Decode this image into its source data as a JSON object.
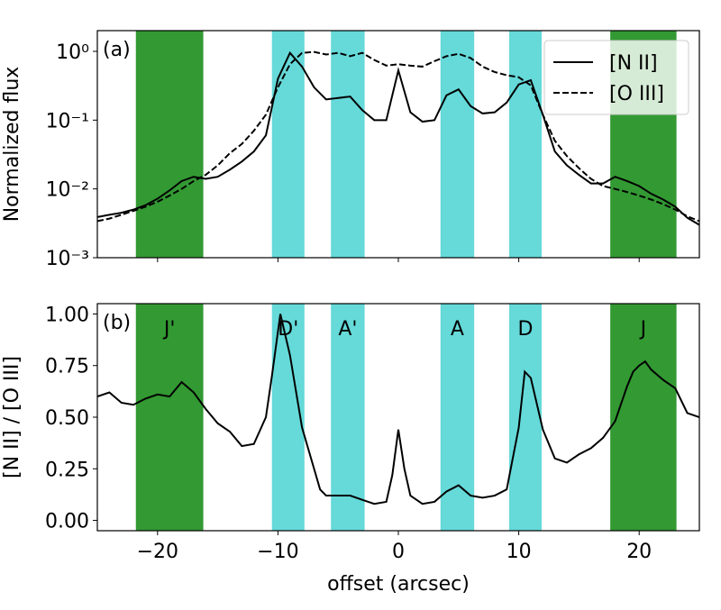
{
  "chart_data": [
    {
      "type": "line",
      "annotation": "(a)",
      "ylabel": "Normalized flux",
      "log_y": true,
      "legend": "upper right",
      "xlim": [
        -25,
        25
      ],
      "xticks": [
        {
          "value": -20,
          "label": "−20"
        },
        {
          "value": -10,
          "label": "−10"
        },
        0,
        10,
        20
      ],
      "xtick_labels": false,
      "ylim": [
        0.001,
        2
      ],
      "yticks": [
        {
          "value": 0.001,
          "label": "10⁻³"
        },
        {
          "value": 0.01,
          "label": "10⁻²"
        },
        {
          "value": 0.1,
          "label": "10⁻¹"
        },
        {
          "value": 1,
          "label": "10⁰"
        }
      ],
      "bands": [
        {
          "range": [
            -21.8,
            -16.2
          ],
          "color": "#339933"
        },
        {
          "range": [
            -10.5,
            -7.8
          ],
          "color": "#66d9d9"
        },
        {
          "range": [
            -5.6,
            -2.8
          ],
          "color": "#66d9d9"
        },
        {
          "range": [
            3.5,
            6.3
          ],
          "color": "#66d9d9"
        },
        {
          "range": [
            9.2,
            11.9
          ],
          "color": "#66d9d9"
        },
        {
          "range": [
            17.6,
            23.1
          ],
          "color": "#339933"
        }
      ],
      "x": [
        -25,
        -24,
        -23,
        -22,
        -21,
        -20,
        -19,
        -18,
        -17,
        -16,
        -15,
        -14,
        -13,
        -12,
        -11,
        -10,
        -9,
        -8,
        -7,
        -6,
        -5,
        -4,
        -3,
        -2,
        -1,
        0,
        1,
        2,
        3,
        4,
        5,
        6,
        7,
        8,
        9,
        10,
        11,
        12,
        13,
        14,
        15,
        16,
        17,
        18,
        19,
        20,
        21,
        22,
        23,
        24,
        25
      ],
      "series": [
        {
          "name": "[N II]",
          "color": "#000000",
          "dashed": false,
          "values": [
            0.0039,
            0.0042,
            0.0045,
            0.005,
            0.0058,
            0.0072,
            0.0095,
            0.013,
            0.015,
            0.014,
            0.015,
            0.019,
            0.025,
            0.035,
            0.06,
            0.4,
            0.95,
            0.6,
            0.3,
            0.2,
            0.21,
            0.22,
            0.14,
            0.1,
            0.1,
            0.53,
            0.13,
            0.095,
            0.1,
            0.23,
            0.28,
            0.16,
            0.125,
            0.13,
            0.18,
            0.33,
            0.38,
            0.12,
            0.035,
            0.022,
            0.016,
            0.012,
            0.012,
            0.015,
            0.013,
            0.011,
            0.0085,
            0.007,
            0.0055,
            0.0038,
            0.003
          ]
        },
        {
          "name": "[O III]",
          "color": "#000000",
          "dashed": true,
          "values": [
            0.0034,
            0.0037,
            0.0042,
            0.0048,
            0.0055,
            0.0065,
            0.008,
            0.01,
            0.013,
            0.016,
            0.022,
            0.033,
            0.045,
            0.07,
            0.12,
            0.3,
            0.65,
            0.95,
            0.98,
            0.9,
            0.95,
            0.85,
            0.95,
            0.75,
            0.62,
            0.65,
            0.62,
            0.6,
            0.72,
            0.85,
            0.92,
            0.8,
            0.6,
            0.5,
            0.45,
            0.42,
            0.32,
            0.12,
            0.05,
            0.03,
            0.02,
            0.014,
            0.011,
            0.01,
            0.009,
            0.008,
            0.007,
            0.006,
            0.005,
            0.004,
            0.0034
          ]
        }
      ]
    },
    {
      "type": "line",
      "annotation": "(b)",
      "ylabel": "[N II] / [O III]",
      "xlabel": "offset (arcsec)",
      "xlim": [
        -25,
        25
      ],
      "xticks": [
        {
          "value": -20,
          "label": "−20"
        },
        {
          "value": -10,
          "label": "−10"
        },
        0,
        10,
        20
      ],
      "ylim": [
        -0.05,
        1.05
      ],
      "yticks": [
        {
          "value": 0,
          "label": "0.00"
        },
        0.25,
        {
          "value": 0.5,
          "label": "0.50"
        },
        0.75,
        {
          "value": 1,
          "label": "1.00"
        }
      ],
      "bands": [
        {
          "label": "J'",
          "range": [
            -21.8,
            -16.2
          ],
          "color": "#339933"
        },
        {
          "label": "D'",
          "range": [
            -10.5,
            -7.8
          ],
          "color": "#66d9d9"
        },
        {
          "label": "A'",
          "range": [
            -5.6,
            -2.8
          ],
          "color": "#66d9d9"
        },
        {
          "label": "A",
          "range": [
            3.5,
            6.3
          ],
          "color": "#66d9d9"
        },
        {
          "label": "D",
          "range": [
            9.2,
            11.9
          ],
          "color": "#66d9d9"
        },
        {
          "label": "J",
          "range": [
            17.6,
            23.1
          ],
          "color": "#339933"
        }
      ],
      "x": [
        -25,
        -24,
        -23,
        -22,
        -21,
        -20,
        -19,
        -18,
        -17,
        -16,
        -15,
        -14,
        -13,
        -12,
        -11,
        -10.5,
        -9.8,
        -9,
        -8,
        -7,
        -6.5,
        -6,
        -5,
        -4,
        -3,
        -2,
        -1,
        -0.5,
        0,
        0.5,
        1,
        2,
        3,
        4,
        5,
        6,
        7,
        8,
        9,
        10,
        10.5,
        11,
        12,
        13,
        14,
        15,
        16,
        17,
        18,
        19,
        19.5,
        20,
        20.5,
        21,
        22,
        23,
        24,
        25
      ],
      "series": [
        {
          "color": "#000000",
          "values": [
            0.6,
            0.62,
            0.57,
            0.56,
            0.59,
            0.61,
            0.6,
            0.67,
            0.62,
            0.54,
            0.47,
            0.43,
            0.36,
            0.37,
            0.5,
            0.7,
            1.0,
            0.8,
            0.45,
            0.25,
            0.15,
            0.12,
            0.12,
            0.12,
            0.1,
            0.08,
            0.09,
            0.22,
            0.44,
            0.25,
            0.12,
            0.08,
            0.09,
            0.14,
            0.17,
            0.12,
            0.11,
            0.12,
            0.15,
            0.45,
            0.72,
            0.69,
            0.44,
            0.3,
            0.28,
            0.32,
            0.35,
            0.4,
            0.48,
            0.65,
            0.72,
            0.75,
            0.77,
            0.73,
            0.68,
            0.64,
            0.52,
            0.5
          ]
        }
      ]
    }
  ]
}
